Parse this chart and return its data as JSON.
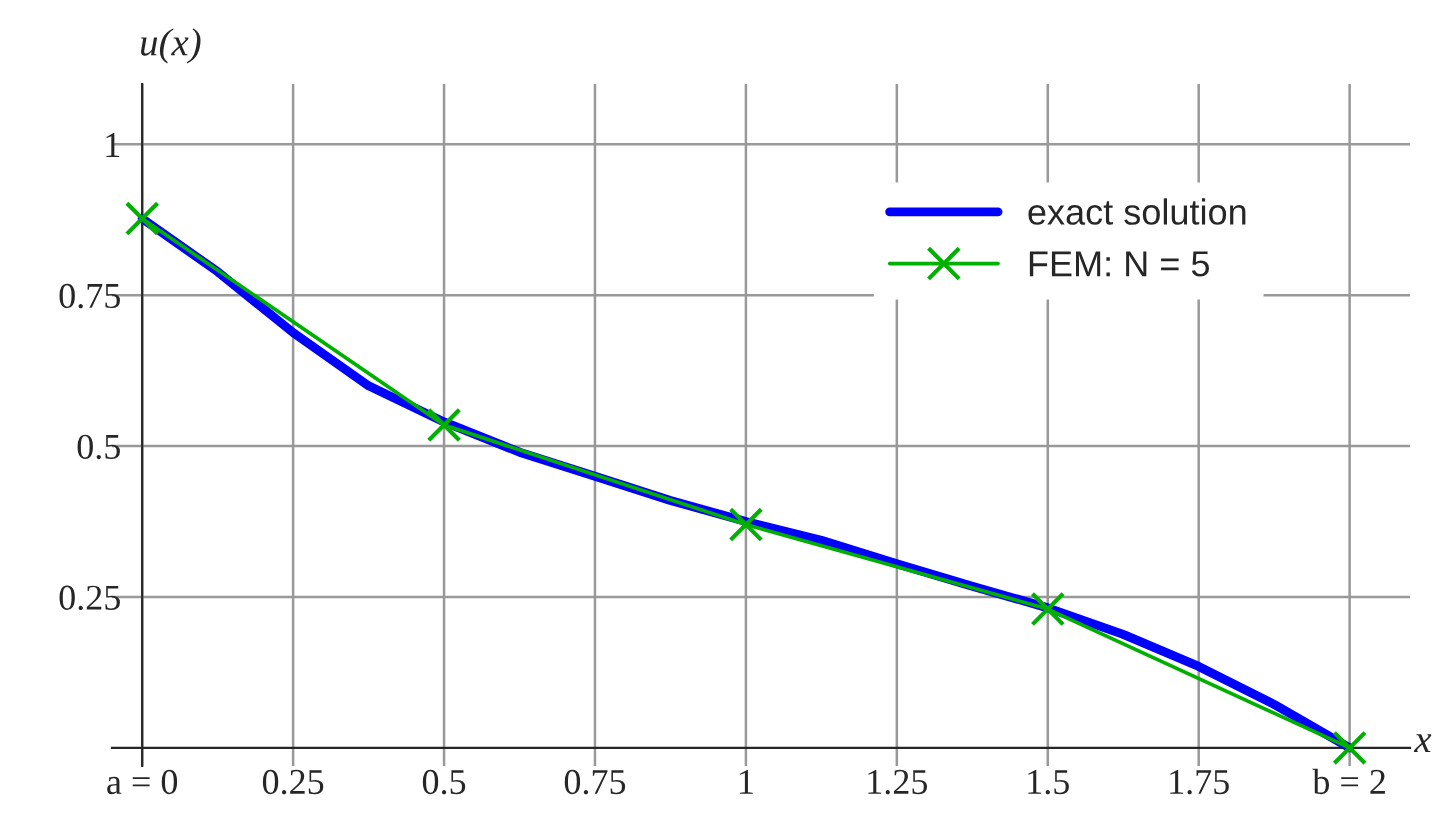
{
  "chart_data": {
    "type": "line",
    "xlabel": "x",
    "ylabel": "u(x)",
    "xlim": [
      -0.05,
      2.1
    ],
    "ylim": [
      -0.03,
      1.1
    ],
    "xticks": [
      {
        "value": 0,
        "label": "a = 0"
      },
      0.25,
      0.5,
      0.75,
      1,
      1.25,
      1.5,
      1.75,
      {
        "value": 2,
        "label": "b = 2"
      }
    ],
    "yticks": [
      0.25,
      0.5,
      0.75,
      1
    ],
    "grid": true,
    "legend": "top right",
    "series": [
      {
        "name": "exact solution",
        "color": "#0000ff",
        "marker": "none",
        "x": [
          0,
          0.125,
          0.25,
          0.375,
          0.5,
          0.625,
          0.75,
          0.875,
          1,
          1.125,
          1.25,
          1.375,
          1.5,
          1.625,
          1.75,
          1.875,
          2
        ],
        "values": [
          0.877,
          0.789,
          0.688,
          0.6,
          0.54,
          0.49,
          0.45,
          0.41,
          0.375,
          0.344,
          0.305,
          0.268,
          0.232,
          0.188,
          0.135,
          0.072,
          0
        ]
      },
      {
        "name": "FEM: N = 5",
        "color": "#00b000",
        "marker": "cross",
        "x": [
          0,
          0.5,
          1,
          1.5,
          2
        ],
        "values": [
          0.877,
          0.535,
          0.37,
          0.23,
          0
        ]
      }
    ]
  }
}
